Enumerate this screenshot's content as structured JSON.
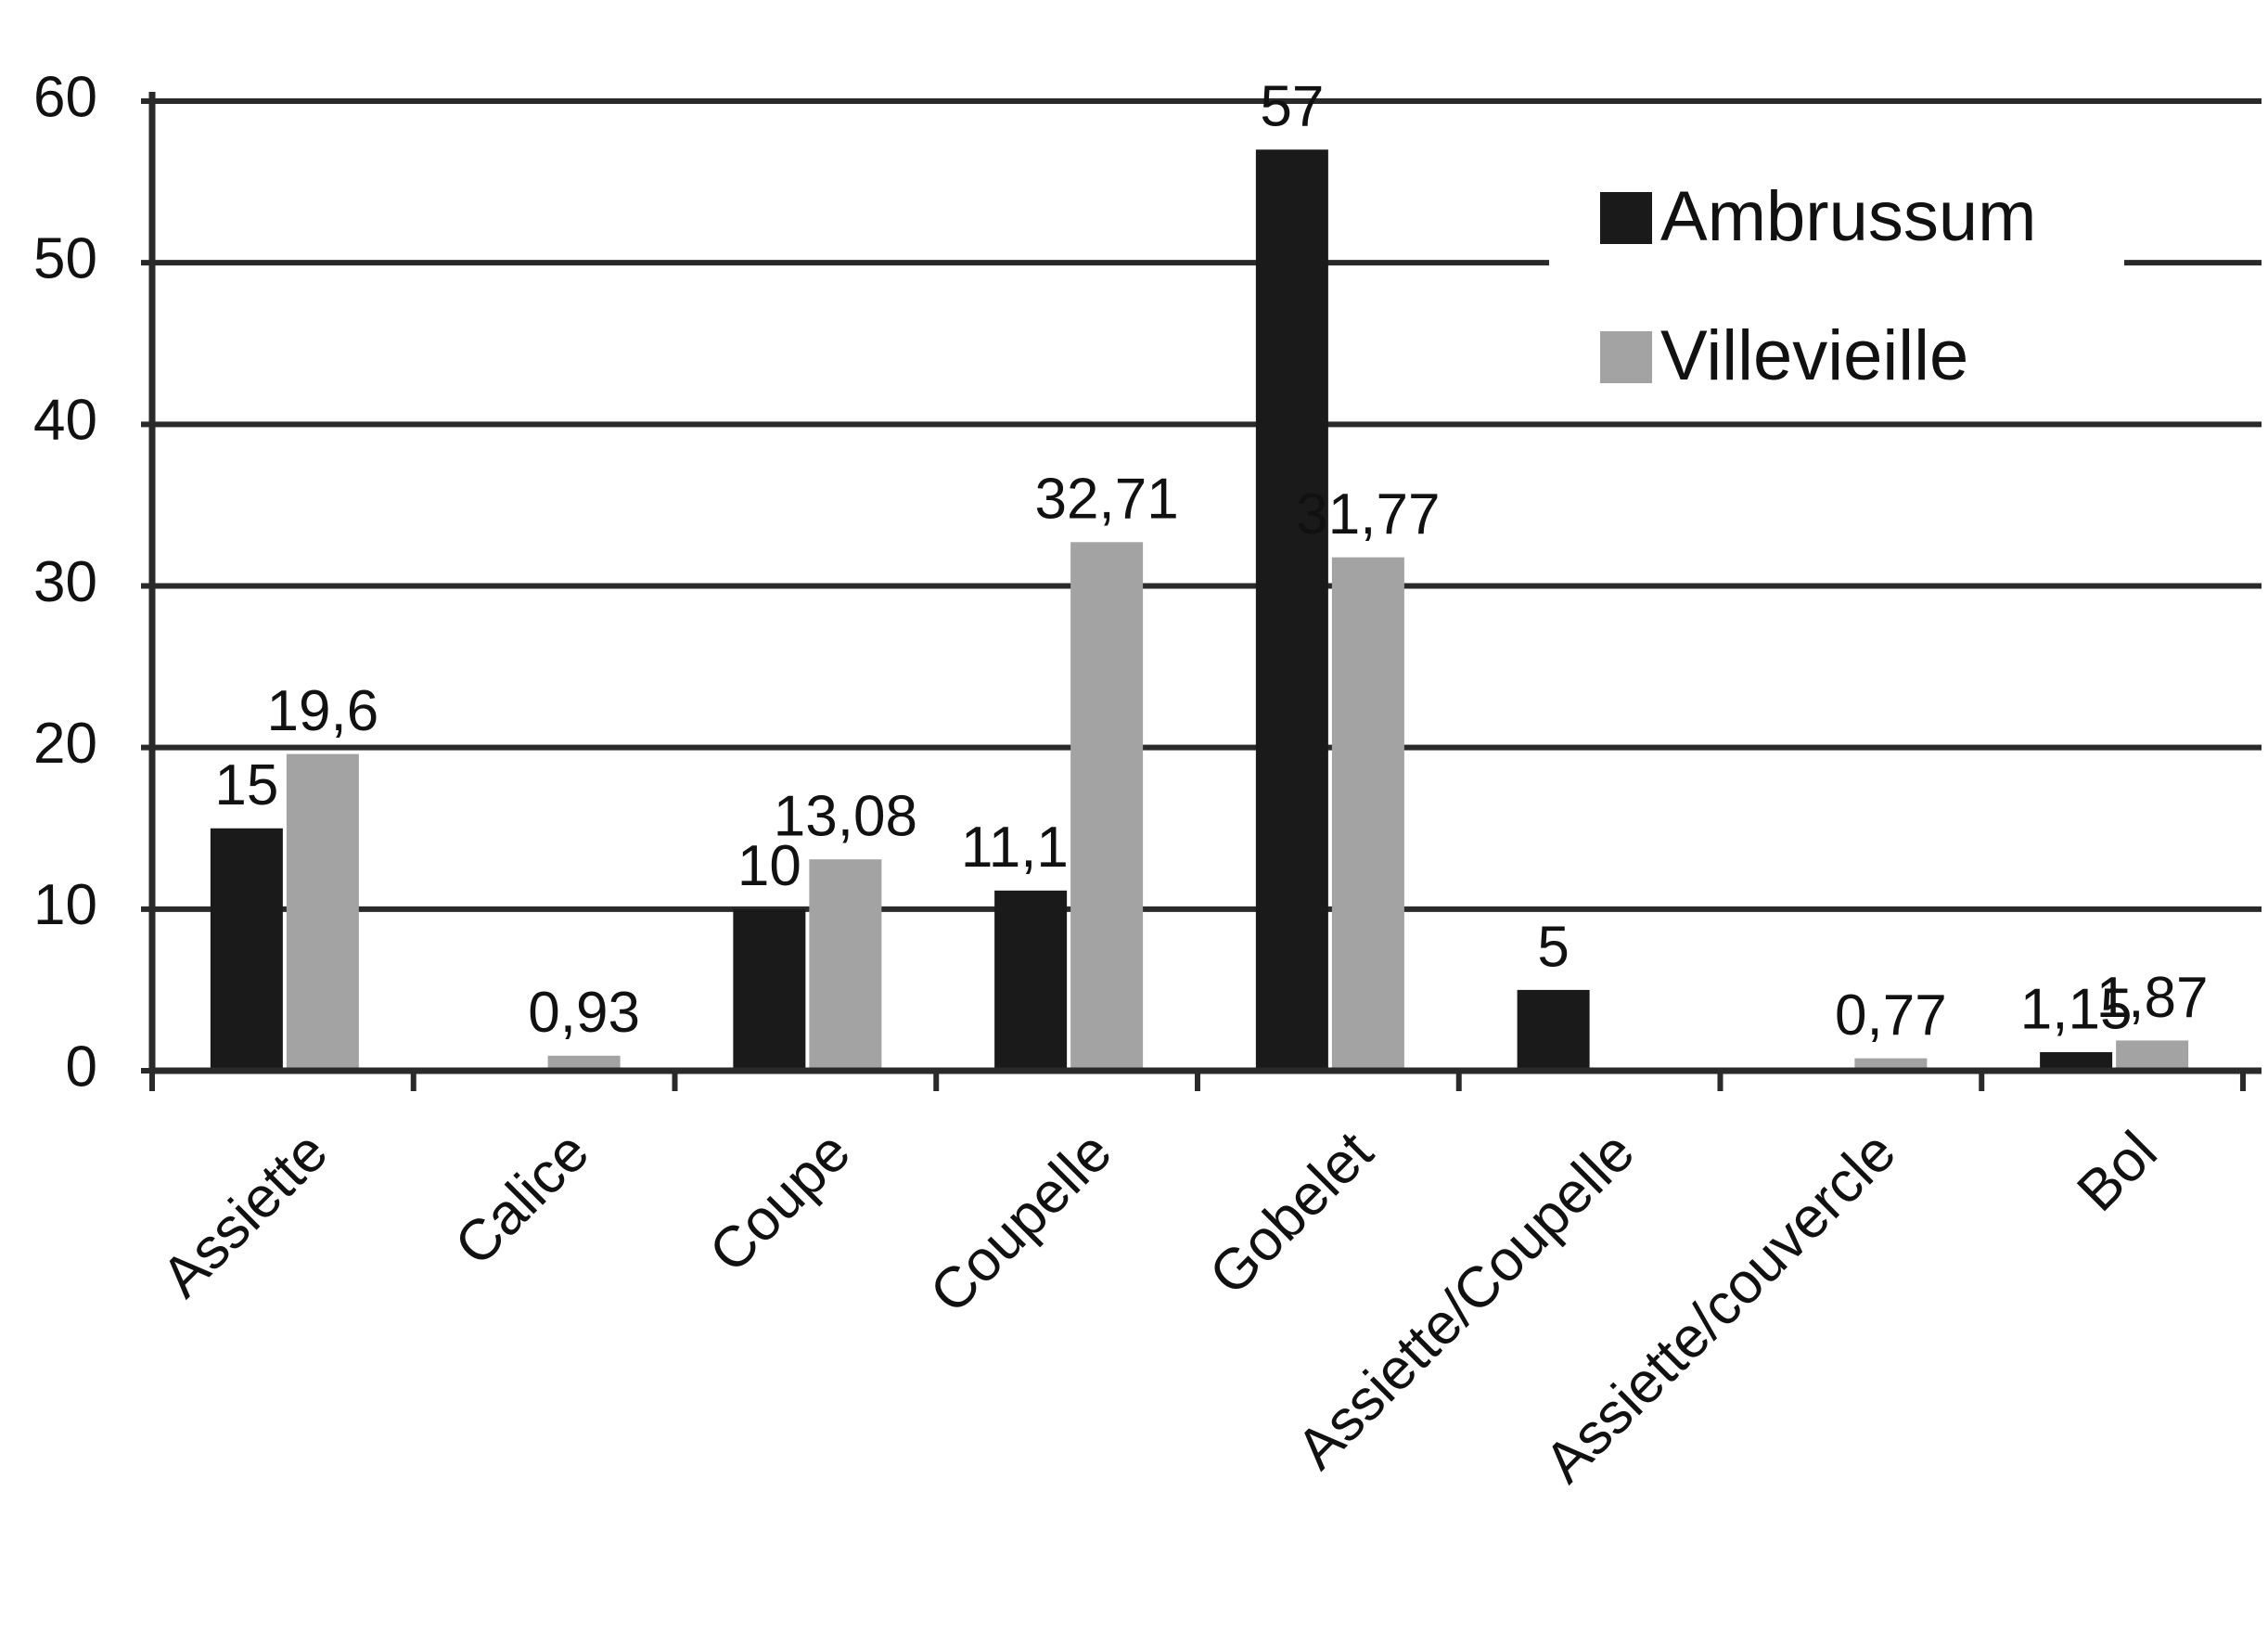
{
  "chart_data": {
    "type": "bar",
    "categories": [
      "Assiette",
      "Calice",
      "Coupe",
      "Coupelle",
      "Gobelet",
      "Assiette/Coupelle",
      "Assiette/couvercle",
      "Bol"
    ],
    "series": [
      {
        "name": "Ambrussum",
        "color": "#1a1a1a",
        "values": [
          15,
          null,
          10,
          11.15,
          57,
          5,
          null,
          1.15
        ],
        "value_labels": [
          "15",
          null,
          "10",
          "11,15",
          "57",
          "5",
          null,
          "1,15"
        ]
      },
      {
        "name": "Villevieille",
        "color": "#a3a3a3",
        "values": [
          19.6,
          0.93,
          13.08,
          32.71,
          31.77,
          null,
          0.77,
          1.87
        ],
        "value_labels": [
          "19,6",
          "0,93",
          "13,08",
          "32,71",
          "31,77",
          null,
          "0,77",
          "1,87"
        ]
      }
    ],
    "ylim": [
      0,
      60
    ],
    "yticks": [
      0,
      10,
      20,
      30,
      40,
      50,
      60
    ],
    "grid": true,
    "legend": "upper right"
  }
}
